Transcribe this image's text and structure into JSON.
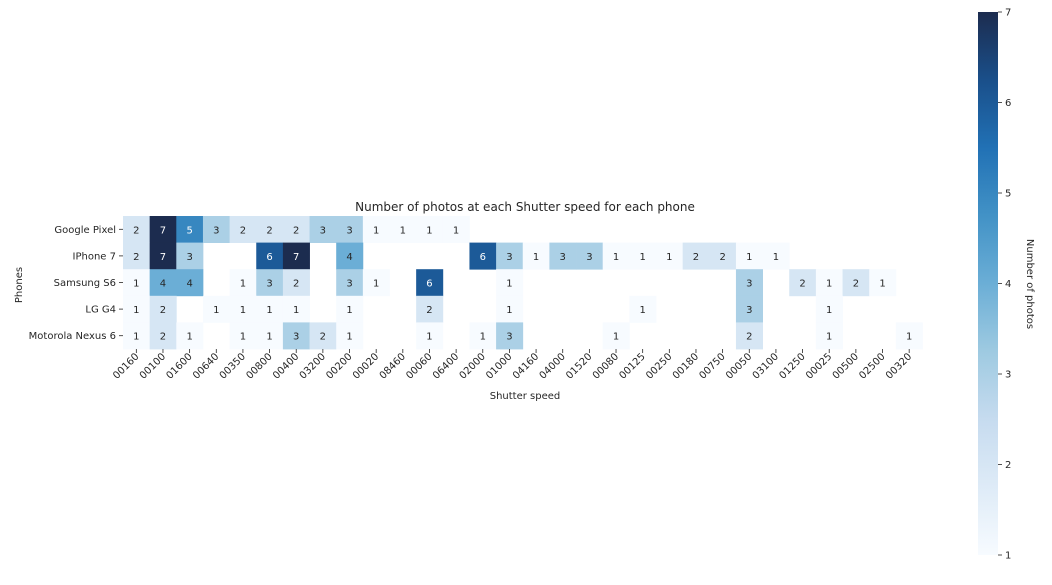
{
  "chart_data": {
    "type": "heatmap",
    "title": "Number of photos at each Shutter speed for each phone",
    "xlabel": "Shutter speed",
    "ylabel": "Phones",
    "colorbar_label": "Number of photos",
    "colorbar_range": [
      1,
      7
    ],
    "colorbar_ticks": [
      "1",
      "2",
      "3",
      "4",
      "5",
      "6",
      "7"
    ],
    "colormap": "Blues",
    "x_categories": [
      "00160",
      "00100",
      "01600",
      "00640",
      "00350",
      "00800",
      "00400",
      "03200",
      "00200",
      "00020",
      "08460",
      "00060",
      "06400",
      "02000",
      "01000",
      "04160",
      "04000",
      "01520",
      "00080",
      "00125",
      "00250",
      "00180",
      "00750",
      "00050",
      "03100",
      "01250",
      "00025",
      "00500",
      "02500",
      "00320"
    ],
    "y_categories": [
      "Google Pixel",
      "IPhone 7",
      "Samsung S6",
      "LG G4",
      "Motorola Nexus 6"
    ],
    "values": [
      [
        2,
        7,
        5,
        3,
        2,
        2,
        2,
        3,
        3,
        1,
        1,
        1,
        1,
        null,
        null,
        null,
        null,
        null,
        null,
        null,
        null,
        null,
        null,
        null,
        null,
        null,
        null,
        null,
        null,
        null
      ],
      [
        2,
        7,
        3,
        null,
        null,
        6,
        7,
        null,
        4,
        null,
        null,
        null,
        null,
        6,
        3,
        1,
        3,
        3,
        1,
        1,
        1,
        2,
        2,
        1,
        1,
        null,
        null,
        null,
        null,
        null
      ],
      [
        1,
        4,
        4,
        null,
        1,
        3,
        2,
        null,
        3,
        1,
        null,
        6,
        null,
        null,
        1,
        null,
        null,
        null,
        null,
        null,
        null,
        null,
        null,
        3,
        null,
        2,
        1,
        2,
        1,
        null
      ],
      [
        1,
        2,
        null,
        1,
        1,
        1,
        1,
        null,
        1,
        null,
        null,
        2,
        null,
        null,
        1,
        null,
        null,
        null,
        null,
        1,
        null,
        null,
        null,
        3,
        null,
        null,
        1,
        null,
        null,
        null
      ],
      [
        1,
        2,
        1,
        null,
        1,
        1,
        3,
        2,
        1,
        null,
        null,
        1,
        null,
        1,
        3,
        null,
        null,
        null,
        1,
        null,
        null,
        null,
        null,
        2,
        null,
        null,
        1,
        null,
        null,
        1
      ]
    ]
  }
}
